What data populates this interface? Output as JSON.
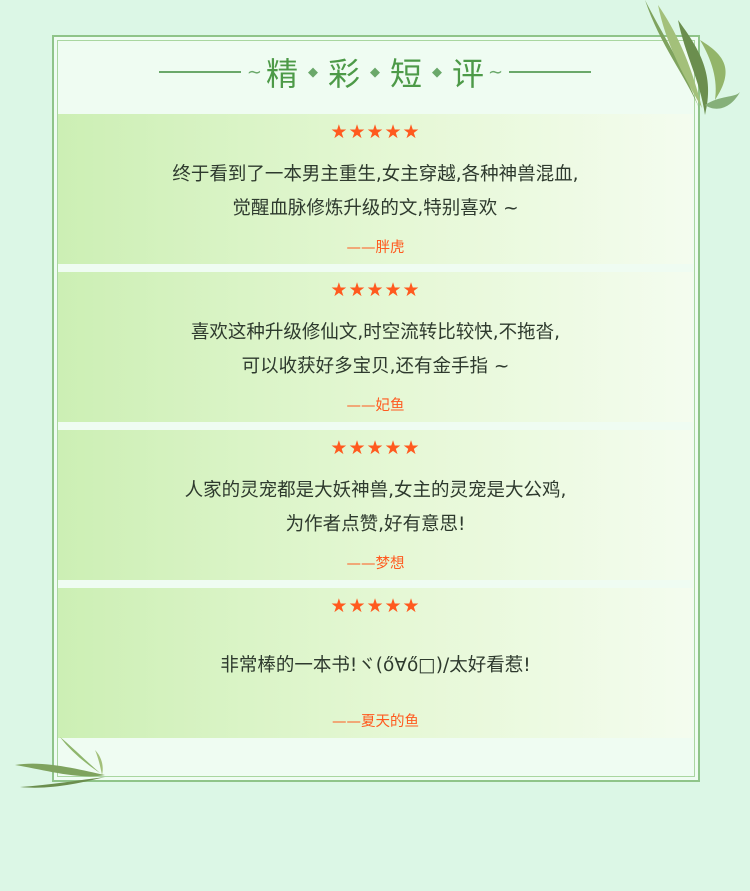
{
  "section_title": {
    "chars": [
      "精",
      "彩",
      "短",
      "评"
    ]
  },
  "reviews": [
    {
      "rating": "★★★★★",
      "lines": [
        "终于看到了一本男主重生,女主穿越,各种神兽混血,",
        "觉醒血脉修炼升级的文,特别喜欢 ~"
      ],
      "author": "——胖虎"
    },
    {
      "rating": "★★★★★",
      "lines": [
        "喜欢这种升级修仙文,时空流转比较快,不拖沓,",
        "可以收获好多宝贝,还有金手指 ~"
      ],
      "author": "——妃鱼"
    },
    {
      "rating": "★★★★★",
      "lines": [
        "人家的灵宠都是大妖神兽,女主的灵宠是大公鸡,",
        "为作者点赞,好有意思!"
      ],
      "author": "——梦想"
    },
    {
      "rating": "★★★★★",
      "lines": [
        "非常棒的一本书!ヾ(ő∀ő□)/太好看惹!"
      ],
      "author": "——夏天的鱼"
    }
  ],
  "colors": {
    "background": "#dcf7e6",
    "accent": "#ff5a1f",
    "title_green": "#4d9a48",
    "text": "#2e3a2e"
  },
  "icons": [
    "bamboo-leaves-top-right",
    "bamboo-leaves-bottom-left",
    "star-icon"
  ]
}
